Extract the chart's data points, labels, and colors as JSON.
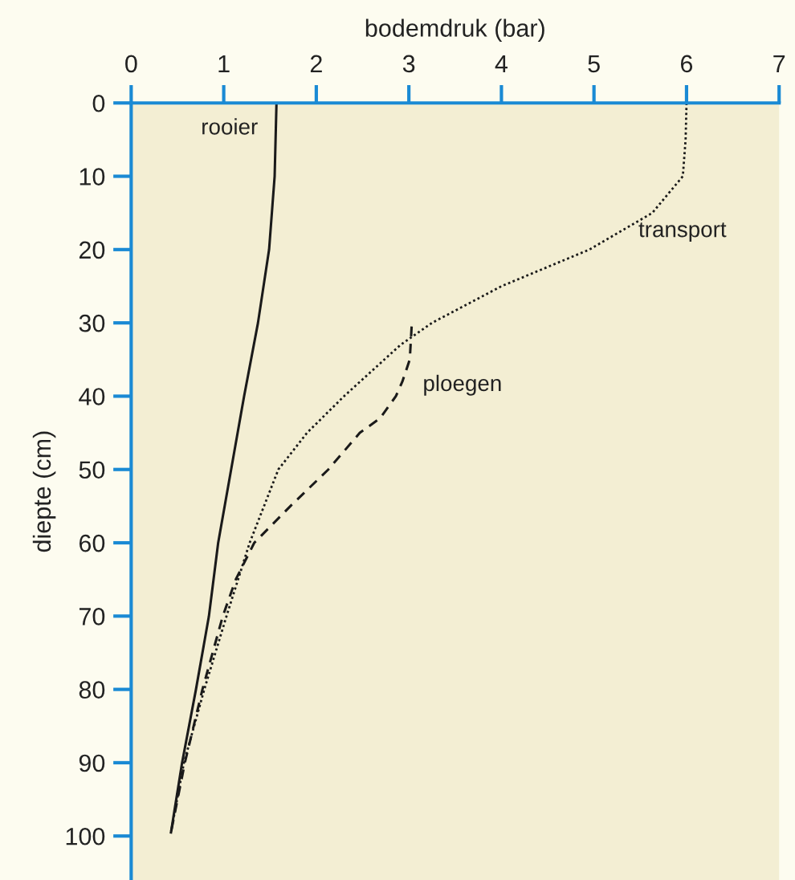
{
  "chart_data": {
    "type": "line",
    "xlabel": "bodemdruk (bar)",
    "ylabel": "diepte (cm)",
    "xlim": [
      0,
      7
    ],
    "xticks": [
      0,
      1,
      2,
      3,
      4,
      5,
      6,
      7
    ],
    "ylim": [
      106,
      0
    ],
    "yticks": [
      0,
      10,
      20,
      30,
      40,
      50,
      60,
      70,
      80,
      90,
      100
    ],
    "grid": false,
    "legend": false,
    "marker": "none",
    "series": [
      {
        "name": "rooier",
        "color": "#1a1a1a",
        "line_style": "solid",
        "x": [
          1.57,
          1.56,
          1.55,
          1.49,
          1.37,
          1.22,
          1.08,
          0.94,
          0.84,
          0.7,
          0.55,
          0.43
        ],
        "values": [
          0,
          5,
          10,
          20,
          30,
          40,
          50,
          60,
          70,
          80,
          90,
          99.5
        ]
      },
      {
        "name": "transport",
        "color": "#1a1a1a",
        "line_style": "dotted",
        "x": [
          6.0,
          5.99,
          5.96,
          5.63,
          4.95,
          4.0,
          3.25,
          2.91,
          2.3,
          1.9,
          1.59,
          1.28,
          1.03,
          0.79,
          0.57,
          0.43
        ],
        "values": [
          0,
          5,
          10,
          15,
          20,
          25,
          30,
          33,
          40,
          45,
          50,
          60,
          70,
          80,
          90,
          99.5
        ]
      },
      {
        "name": "ploegen",
        "color": "#1a1a1a",
        "line_style": "dashed",
        "x": [
          3.03,
          3.01,
          2.93,
          2.86,
          2.69,
          2.47,
          2.13,
          1.72,
          1.33,
          1.13,
          0.99,
          0.77,
          0.58,
          0.43
        ],
        "values": [
          30.5,
          35,
          38,
          40,
          43,
          45,
          50,
          55,
          60,
          65,
          70,
          80,
          90,
          99.5
        ]
      }
    ]
  }
}
